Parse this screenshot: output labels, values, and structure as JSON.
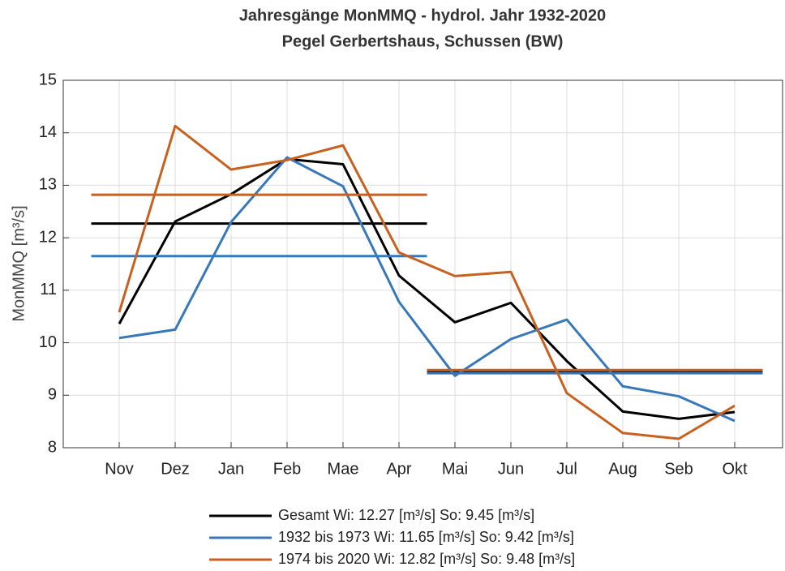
{
  "chart_data": {
    "type": "line",
    "title": [
      "Jahresgänge MonMMQ - hydrol. Jahr 1932-2020",
      "Pegel Gerbertshaus, Schussen (BW)"
    ],
    "y_label": "MonMMQ [m³/s]",
    "categories": [
      "Nov",
      "Dez",
      "Jan",
      "Feb",
      "Mae",
      "Apr",
      "Mai",
      "Jun",
      "Jul",
      "Aug",
      "Seb",
      "Okt"
    ],
    "ylim": [
      8,
      15
    ],
    "yticks": [
      8,
      9,
      10,
      11,
      12,
      13,
      14,
      15
    ],
    "grid": true,
    "series": [
      {
        "name": "Gesamt Wi: 12.27 [m³/s] So:  9.45 [m³/s]",
        "color": "#000000",
        "winter_mean": 12.27,
        "summer_mean": 9.45,
        "values": [
          10.36,
          12.31,
          12.83,
          13.5,
          13.4,
          11.28,
          10.39,
          10.76,
          9.65,
          8.69,
          8.55,
          8.68
        ]
      },
      {
        "name": "1932 bis 1973 Wi: 11.65 [m³/s] So:  9.42 [m³/s]",
        "color": "#3878b8",
        "winter_mean": 11.65,
        "summer_mean": 9.42,
        "values": [
          10.09,
          10.25,
          12.3,
          13.53,
          12.98,
          10.78,
          9.37,
          10.07,
          10.44,
          9.17,
          8.98,
          8.51
        ]
      },
      {
        "name": "1974 bis 2020 Wi: 12.82 [m³/s] So:  9.48 [m³/s]",
        "color": "#c8611f",
        "winter_mean": 12.82,
        "summer_mean": 9.48,
        "values": [
          10.58,
          14.13,
          13.3,
          13.48,
          13.76,
          11.72,
          11.27,
          11.35,
          9.04,
          8.28,
          8.17,
          8.8
        ]
      }
    ]
  }
}
